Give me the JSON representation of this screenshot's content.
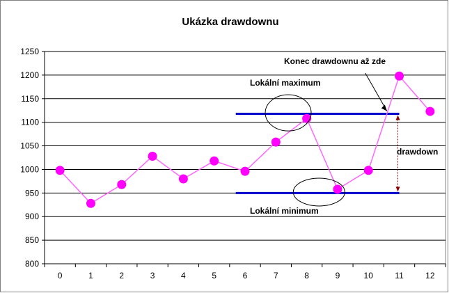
{
  "chart_data": {
    "type": "line",
    "title": "Ukázka drawdownu",
    "xlabel": "",
    "ylabel": "",
    "categories": [
      "0",
      "1",
      "2",
      "3",
      "4",
      "5",
      "6",
      "7",
      "8",
      "9",
      "10",
      "11",
      "12"
    ],
    "series": [
      {
        "values": [
          998,
          928,
          968,
          1028,
          980,
          1018,
          996,
          1058,
          1108,
          958,
          998,
          1198,
          1123
        ]
      }
    ],
    "ylim": [
      800,
      1250
    ],
    "yticks": [
      "800",
      "850",
      "900",
      "950",
      "1000",
      "1050",
      "1100",
      "1150",
      "1200",
      "1250"
    ],
    "grid": "horizontal",
    "colors": {
      "line": "#ff66ff",
      "marker": "#ff00ff",
      "level": "#0000cc",
      "drawdown_arrow": "#8b0000"
    },
    "levels": {
      "maximum": 1118,
      "minimum": 950,
      "from_x": 5.7,
      "to_x": 11
    },
    "annotations": {
      "max_label": "Lokální maximum",
      "min_label": "Lokální minimum",
      "end_label": "Konec drawdownu  až zde",
      "drawdown_label": "drawdown"
    }
  }
}
